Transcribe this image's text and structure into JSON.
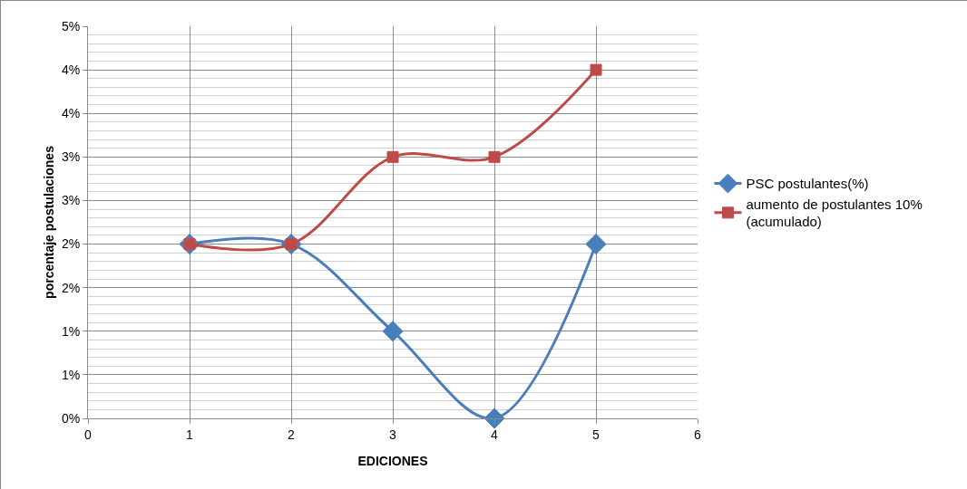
{
  "chart_data": {
    "type": "line",
    "xlabel": "EDICIONES",
    "ylabel": "porcentaje postulaciones",
    "x": [
      1,
      2,
      3,
      4,
      5
    ],
    "series": [
      {
        "name": "PSC postulantes(%)",
        "color": "#4a7ebb",
        "marker": "diamond",
        "values": [
          2.0,
          2.0,
          1.0,
          0,
          2.0
        ]
      },
      {
        "name": "aumento de postulantes 10% (acumulado)",
        "color": "#be4b48",
        "marker": "square",
        "values": [
          2.0,
          2.0,
          3.0,
          3.0,
          4.0
        ]
      }
    ],
    "xlim": [
      0,
      6
    ],
    "xticks": [
      0,
      1,
      2,
      3,
      4,
      5,
      6
    ],
    "ylim": [
      0,
      4.5
    ],
    "yticks": [
      {
        "value": 0,
        "label": "0%"
      },
      {
        "value": 0.5,
        "label": "1%"
      },
      {
        "value": 1,
        "label": "1%"
      },
      {
        "value": 1.5,
        "label": "2%"
      },
      {
        "value": 2,
        "label": "2%"
      },
      {
        "value": 2.5,
        "label": "3%"
      },
      {
        "value": 3,
        "label": "3%"
      },
      {
        "value": 3.5,
        "label": "4%"
      },
      {
        "value": 4,
        "label": "4%"
      },
      {
        "value": 4.5,
        "label": "5%"
      }
    ],
    "grid": true,
    "legend": "right",
    "line_style": "solid"
  }
}
